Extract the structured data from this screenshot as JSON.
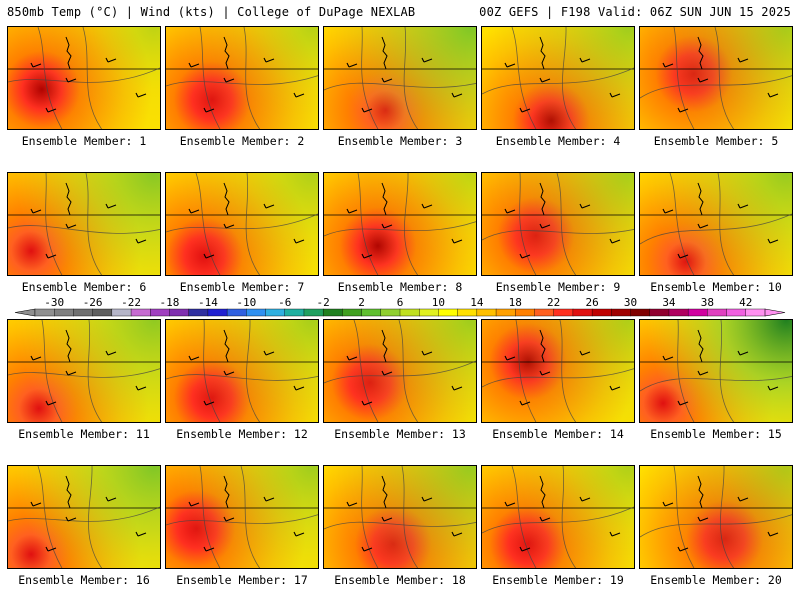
{
  "header": {
    "left": "850mb Temp (°C) | Wind (kts) | College of DuPage NEXLAB",
    "right": "00Z GEFS | F198 Valid: 06Z SUN JUN 15 2025"
  },
  "panels": [
    {
      "label": "Ensemble Member: 1",
      "hot_x": 0.22,
      "hot_y": 0.6,
      "intensity": 0.95,
      "cool": 0.1
    },
    {
      "label": "Ensemble Member: 2",
      "hot_x": 0.3,
      "hot_y": 0.7,
      "intensity": 0.8,
      "cool": 0.15
    },
    {
      "label": "Ensemble Member: 3",
      "hot_x": 0.4,
      "hot_y": 0.8,
      "intensity": 0.45,
      "cool": 0.5
    },
    {
      "label": "Ensemble Member: 4",
      "hot_x": 0.45,
      "hot_y": 0.9,
      "intensity": 0.9,
      "cool": 0.3
    },
    {
      "label": "Ensemble Member: 5",
      "hot_x": 0.35,
      "hot_y": 0.45,
      "intensity": 0.7,
      "cool": 0.25
    },
    {
      "label": "Ensemble Member: 6",
      "hot_x": 0.15,
      "hot_y": 0.75,
      "intensity": 0.55,
      "cool": 0.45
    },
    {
      "label": "Ensemble Member: 7",
      "hot_x": 0.25,
      "hot_y": 0.8,
      "intensity": 0.75,
      "cool": 0.2
    },
    {
      "label": "Ensemble Member: 8",
      "hot_x": 0.35,
      "hot_y": 0.7,
      "intensity": 0.95,
      "cool": 0.1
    },
    {
      "label": "Ensemble Member: 9",
      "hot_x": 0.35,
      "hot_y": 0.6,
      "intensity": 0.65,
      "cool": 0.25
    },
    {
      "label": "Ensemble Member: 10",
      "hot_x": 0.3,
      "hot_y": 0.85,
      "intensity": 0.6,
      "cool": 0.35
    },
    {
      "label": "Ensemble Member: 11",
      "hot_x": 0.2,
      "hot_y": 0.85,
      "intensity": 0.6,
      "cool": 0.4
    },
    {
      "label": "Ensemble Member: 12",
      "hot_x": 0.3,
      "hot_y": 0.75,
      "intensity": 0.8,
      "cool": 0.25
    },
    {
      "label": "Ensemble Member: 13",
      "hot_x": 0.3,
      "hot_y": 0.6,
      "intensity": 0.65,
      "cool": 0.3
    },
    {
      "label": "Ensemble Member: 14",
      "hot_x": 0.3,
      "hot_y": 0.4,
      "intensity": 0.9,
      "cool": 0.2
    },
    {
      "label": "Ensemble Member: 15",
      "hot_x": 0.15,
      "hot_y": 0.8,
      "intensity": 0.6,
      "cool": 0.75
    },
    {
      "label": "Ensemble Member: 16",
      "hot_x": 0.15,
      "hot_y": 0.85,
      "intensity": 0.45,
      "cool": 0.5
    },
    {
      "label": "Ensemble Member: 17",
      "hot_x": 0.2,
      "hot_y": 0.6,
      "intensity": 0.8,
      "cool": 0.3
    },
    {
      "label": "Ensemble Member: 18",
      "hot_x": 0.45,
      "hot_y": 0.75,
      "intensity": 0.7,
      "cool": 0.35
    },
    {
      "label": "Ensemble Member: 19",
      "hot_x": 0.3,
      "hot_y": 0.75,
      "intensity": 0.85,
      "cool": 0.2
    },
    {
      "label": "Ensemble Member: 20",
      "hot_x": 0.55,
      "hot_y": 0.7,
      "intensity": 0.75,
      "cool": 0.2
    }
  ],
  "colorbar": {
    "tick_labels": [
      "-30",
      "-26",
      "-22",
      "-18",
      "-14",
      "-10",
      "-6",
      "-2",
      "2",
      "6",
      "10",
      "14",
      "18",
      "22",
      "26",
      "30",
      "34",
      "38",
      "42"
    ],
    "colors": [
      "#909090",
      "#808080",
      "#707070",
      "#5f5f5f",
      "#b5b5c8",
      "#c66bd1",
      "#a040c0",
      "#8030b0",
      "#3030a0",
      "#2020d0",
      "#3060e0",
      "#3090f0",
      "#30b0e0",
      "#20b0a0",
      "#20a060",
      "#208020",
      "#40a020",
      "#60c030",
      "#90d030",
      "#c0e020",
      "#e0f020",
      "#ffff00",
      "#ffe000",
      "#ffc000",
      "#ffa000",
      "#ff8000",
      "#ff6020",
      "#ff3020",
      "#e01010",
      "#c00000",
      "#a00000",
      "#800000",
      "#900030",
      "#b00060",
      "#d000a0",
      "#e040c0",
      "#f060e0",
      "#ff90f0"
    ]
  }
}
